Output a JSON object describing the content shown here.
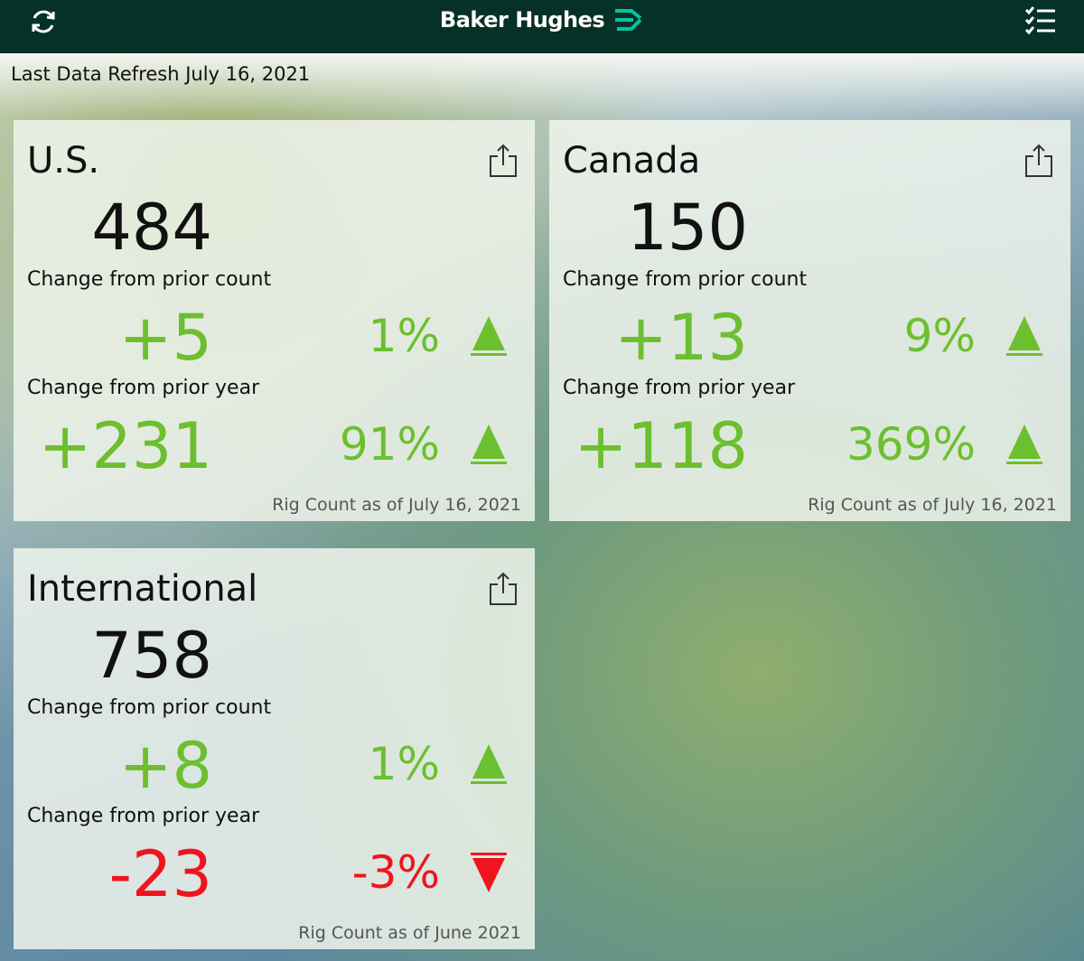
{
  "header": {
    "brand": "Baker Hughes"
  },
  "refresh_label": "Last Data Refresh July 16, 2021",
  "cards": [
    {
      "title": "U.S.",
      "count": "484",
      "prior_count_label": "Change from prior count",
      "prior_count_change": "+5",
      "prior_count_percent": "1%",
      "prior_year_label": "Change from prior year",
      "prior_year_change": "+231",
      "prior_year_percent": "91%",
      "footer": "Rig Count as of July 16, 2021"
    },
    {
      "title": "Canada",
      "count": "150",
      "prior_count_label": "Change from prior count",
      "prior_count_change": "+13",
      "prior_count_percent": "9%",
      "prior_year_label": "Change from prior year",
      "prior_year_change": "+118",
      "prior_year_percent": "369%",
      "footer": "Rig Count as of July 16, 2021"
    },
    {
      "title": "International",
      "count": "758",
      "prior_count_label": "Change from prior count",
      "prior_count_change": "+8",
      "prior_count_percent": "1%",
      "prior_year_label": "Change from prior year",
      "prior_year_change": "-23",
      "prior_year_percent": "-3%",
      "footer": "Rig Count as of June 2021"
    }
  ]
}
